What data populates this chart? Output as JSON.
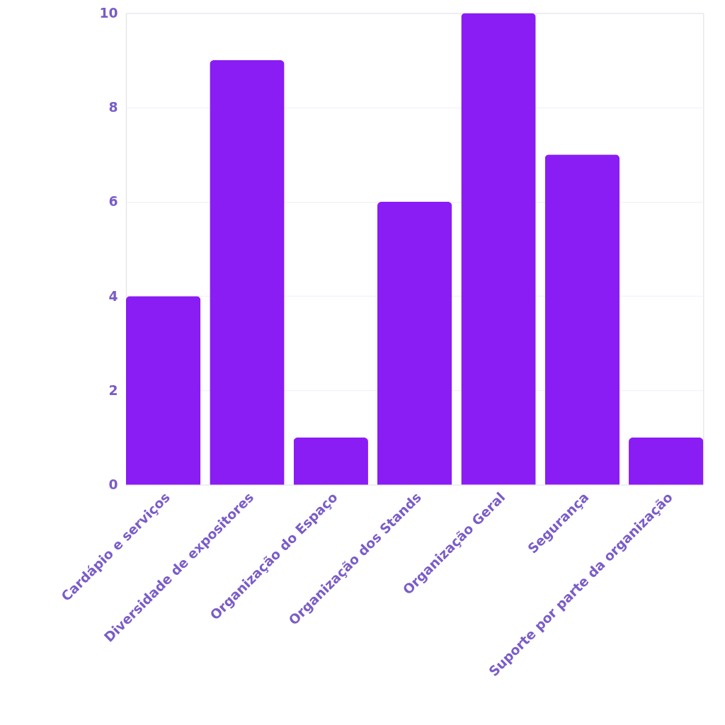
{
  "chart_data": {
    "type": "bar",
    "categories": [
      "Cardápio e serviços",
      "Diversidade de expositores",
      "Organização do Espaço",
      "Organização dos Stands",
      "Organização Geral",
      "Segurança",
      "Suporte por parte da organização"
    ],
    "values": [
      4,
      9,
      1,
      6,
      10,
      7,
      1
    ],
    "color": "#8a1cf4",
    "ylim": [
      0,
      10
    ],
    "yticks": [
      0,
      2,
      4,
      6,
      8,
      10
    ],
    "grid": "y"
  }
}
